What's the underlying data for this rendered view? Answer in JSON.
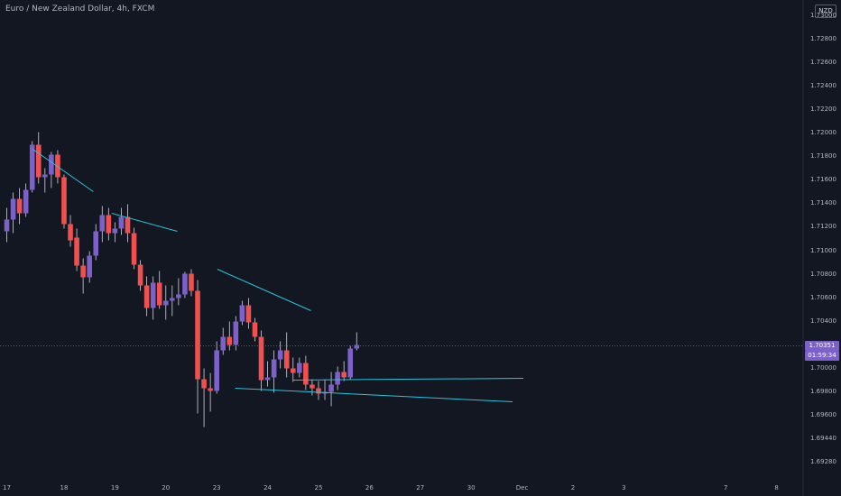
{
  "title": "Euro / New Zealand Dollar, 4h, FXCM",
  "currency": "NZD",
  "current_price_label": "1.70351",
  "countdown_label": "01:59:34",
  "colors": {
    "background": "#131722",
    "bull": "#7b61c9",
    "bear": "#f0504e",
    "trendline": "#26c6da",
    "current": "#7b61c9",
    "axis_text": "#b2b5be"
  },
  "chart_data": {
    "type": "candlestick",
    "title": "Euro / New Zealand Dollar, 4h, FXCM",
    "y_tick_labels": [
      "1.73000",
      "1.72800",
      "1.72600",
      "1.72400",
      "1.72200",
      "1.72000",
      "1.71800",
      "1.71600",
      "1.71400",
      "1.71200",
      "1.71000",
      "1.70800",
      "1.70600",
      "1.70400",
      "1.70200",
      "1.70000",
      "1.69800",
      "1.69600",
      "1.69440",
      "1.69280"
    ],
    "x_tick_labels": [
      {
        "label": "17",
        "slot": 0.5
      },
      {
        "label": "18",
        "slot": 9.5
      },
      {
        "label": "19",
        "slot": 17.5
      },
      {
        "label": "20",
        "slot": 25.5
      },
      {
        "label": "23",
        "slot": 33.5
      },
      {
        "label": "24",
        "slot": 41.5
      },
      {
        "label": "25",
        "slot": 49.5
      },
      {
        "label": "26",
        "slot": 57.5
      },
      {
        "label": "27",
        "slot": 65.5
      },
      {
        "label": "30",
        "slot": 73.5
      },
      {
        "label": "Dec",
        "slot": 81.5
      },
      {
        "label": "2",
        "slot": 89.5
      },
      {
        "label": "3",
        "slot": 97.5
      },
      {
        "label": "7",
        "slot": 113.5
      },
      {
        "label": "8",
        "slot": 121.5
      }
    ],
    "current_price": 1.70351,
    "candles": [
      [
        1.7162,
        1.7188,
        1.715,
        1.7175
      ],
      [
        1.7175,
        1.7205,
        1.716,
        1.7198
      ],
      [
        1.7198,
        1.721,
        1.717,
        1.7182
      ],
      [
        1.7182,
        1.7215,
        1.7178,
        1.7208
      ],
      [
        1.7208,
        1.7262,
        1.7205,
        1.7258
      ],
      [
        1.7258,
        1.7272,
        1.7215,
        1.7222
      ],
      [
        1.7222,
        1.7232,
        1.7205,
        1.7225
      ],
      [
        1.7225,
        1.725,
        1.721,
        1.7247
      ],
      [
        1.7247,
        1.7252,
        1.7215,
        1.7222
      ],
      [
        1.7222,
        1.7225,
        1.7165,
        1.717
      ],
      [
        1.717,
        1.718,
        1.7145,
        1.7152
      ],
      [
        1.7155,
        1.7165,
        1.7118,
        1.7124
      ],
      [
        1.7124,
        1.7132,
        1.7093,
        1.7111
      ],
      [
        1.7111,
        1.714,
        1.7105,
        1.7135
      ],
      [
        1.7135,
        1.717,
        1.713,
        1.7162
      ],
      [
        1.7162,
        1.719,
        1.715,
        1.718
      ],
      [
        1.718,
        1.7188,
        1.7152,
        1.716
      ],
      [
        1.716,
        1.7172,
        1.715,
        1.7165
      ],
      [
        1.7165,
        1.7188,
        1.7158,
        1.7178
      ],
      [
        1.7178,
        1.7192,
        1.715,
        1.716
      ],
      [
        1.716,
        1.7166,
        1.712,
        1.7125
      ],
      [
        1.7125,
        1.713,
        1.7096,
        1.7102
      ],
      [
        1.7102,
        1.7112,
        1.7068,
        1.7077
      ],
      [
        1.7077,
        1.7112,
        1.7064,
        1.7105
      ],
      [
        1.7105,
        1.7118,
        1.7076,
        1.708
      ],
      [
        1.708,
        1.7102,
        1.7064,
        1.7085
      ],
      [
        1.7085,
        1.7102,
        1.7068,
        1.7088
      ],
      [
        1.7088,
        1.711,
        1.708,
        1.7092
      ],
      [
        1.7092,
        1.7117,
        1.7088,
        1.7115
      ],
      [
        1.7115,
        1.712,
        1.709,
        1.7096
      ],
      [
        1.7096,
        1.7108,
        1.696,
        1.6998
      ],
      [
        1.6998,
        1.701,
        1.6945,
        1.6988
      ],
      [
        1.6988,
        1.7005,
        1.6962,
        1.6985
      ],
      [
        1.6985,
        1.704,
        1.6982,
        1.703
      ],
      [
        1.703,
        1.7055,
        1.7025,
        1.7045
      ],
      [
        1.7045,
        1.7062,
        1.703,
        1.7036
      ],
      [
        1.7036,
        1.7068,
        1.703,
        1.7062
      ],
      [
        1.7062,
        1.7085,
        1.7058,
        1.708
      ],
      [
        1.708,
        1.7088,
        1.7054,
        1.7061
      ],
      [
        1.7061,
        1.7066,
        1.704,
        1.7045
      ],
      [
        1.7045,
        1.7052,
        1.6985,
        1.6997
      ],
      [
        1.6997,
        1.7018,
        1.699,
        1.7
      ],
      [
        1.7,
        1.703,
        1.6983,
        1.702
      ],
      [
        1.702,
        1.704,
        1.701,
        1.703
      ],
      [
        1.703,
        1.705,
        1.7,
        1.701
      ],
      [
        1.701,
        1.7022,
        1.6995,
        1.7005
      ],
      [
        1.7005,
        1.7022,
        1.7,
        1.7016
      ],
      [
        1.7016,
        1.7024,
        1.6986,
        1.6992
      ],
      [
        1.6992,
        1.6998,
        1.698,
        1.6988
      ],
      [
        1.6988,
        1.6996,
        1.6975,
        1.6982
      ],
      [
        1.6982,
        1.6998,
        1.6975,
        1.6984
      ],
      [
        1.6984,
        1.7006,
        1.6968,
        1.6992
      ],
      [
        1.6992,
        1.7012,
        1.6986,
        1.7006
      ],
      [
        1.7006,
        1.7018,
        1.6996,
        1.7
      ],
      [
        1.7,
        1.7035,
        1.6998,
        1.7032
      ],
      [
        1.7032,
        1.705,
        1.703,
        1.7036
      ]
    ],
    "trendlines": [
      {
        "from": [
          4.6,
          1.7253
        ],
        "to": [
          14.1,
          1.7206
        ]
      },
      {
        "from": [
          17,
          1.7182
        ],
        "to": [
          27.3,
          1.7162
        ]
      },
      {
        "from": [
          33.6,
          1.712
        ],
        "to": [
          48.3,
          1.7074
        ]
      },
      {
        "from": [
          36.4,
          1.6988
        ],
        "to": [
          80,
          1.6973
        ]
      },
      {
        "from": [
          45.5,
          1.6997
        ],
        "to": [
          81.7,
          1.6999
        ]
      }
    ]
  }
}
